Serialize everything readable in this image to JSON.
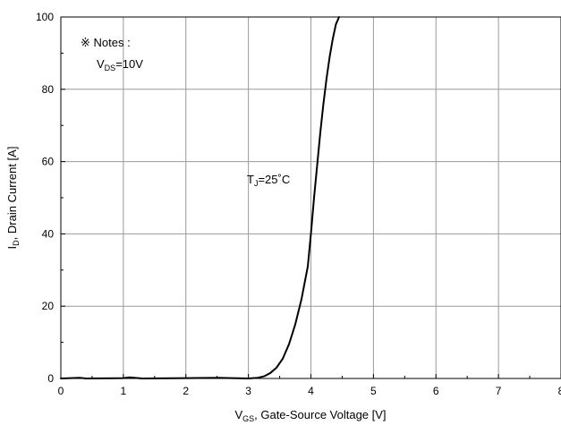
{
  "chart_data": {
    "type": "line",
    "title": "",
    "xlabel": {
      "main": "V",
      "sub": "GS",
      "rest": ", Gate-Source Voltage [V]"
    },
    "ylabel": {
      "main": "I",
      "sub": "D",
      "rest": ", Drain Current [A]"
    },
    "xlim": [
      0,
      8
    ],
    "ylim": [
      0,
      100
    ],
    "xticks": [
      0,
      1,
      2,
      3,
      4,
      5,
      6,
      7,
      8
    ],
    "yticks": [
      0,
      20,
      40,
      60,
      80,
      100
    ],
    "x_minor_step": 0.5,
    "y_minor_step": 10,
    "grid": true,
    "colors": {
      "line": "#000000",
      "grid": "#9a9a9a",
      "axis": "#000000"
    },
    "annotations": {
      "notes_title": "※ Notes :",
      "vds": {
        "main": "V",
        "sub": "DS",
        "rest": "=10V"
      },
      "tj": {
        "main": "T",
        "sub": "J",
        "rest": "=25˚C"
      }
    },
    "series": [
      {
        "points": [
          [
            0.0,
            0.0
          ],
          [
            0.3,
            0.2
          ],
          [
            0.4,
            0.0
          ],
          [
            1.0,
            0.1
          ],
          [
            1.1,
            0.3
          ],
          [
            1.3,
            0.0
          ],
          [
            2.0,
            0.1
          ],
          [
            2.5,
            0.2
          ],
          [
            3.0,
            0.0
          ],
          [
            3.15,
            0.2
          ],
          [
            3.25,
            0.6
          ],
          [
            3.35,
            1.5
          ],
          [
            3.45,
            3.0
          ],
          [
            3.55,
            5.5
          ],
          [
            3.65,
            9.5
          ],
          [
            3.75,
            15.0
          ],
          [
            3.85,
            22.0
          ],
          [
            3.95,
            31.0
          ],
          [
            4.0,
            40.0
          ],
          [
            4.05,
            50.0
          ],
          [
            4.1,
            59.0
          ],
          [
            4.15,
            68.0
          ],
          [
            4.2,
            76.0
          ],
          [
            4.25,
            83.0
          ],
          [
            4.3,
            89.0
          ],
          [
            4.35,
            94.0
          ],
          [
            4.4,
            98.0
          ],
          [
            4.45,
            100.0
          ]
        ]
      }
    ]
  }
}
